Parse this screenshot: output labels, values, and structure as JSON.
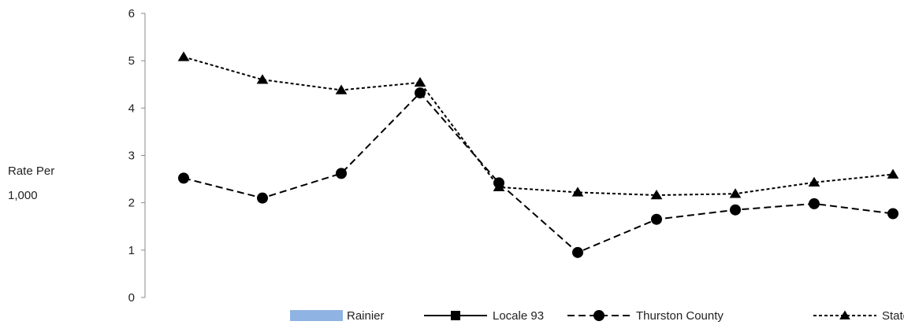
{
  "chart_data": {
    "type": "line",
    "title": "",
    "ylabel": [
      "Rate Per",
      "1,000"
    ],
    "xlabel": "",
    "ylim": [
      0,
      6
    ],
    "yticks": [
      "0",
      "1",
      "2",
      "3",
      "4",
      "5",
      "6"
    ],
    "legend_position": "bottom",
    "series": [
      {
        "name": "Rainier",
        "style": "bar",
        "color": "#8FB4E3",
        "values": []
      },
      {
        "name": "Locale 93",
        "style": "solid-square",
        "color": "#000000",
        "values": []
      },
      {
        "name": "Thurston County",
        "style": "dashed-circle",
        "color": "#000000",
        "values": [
          2.52,
          2.1,
          2.62,
          4.32,
          2.42,
          0.95,
          1.65,
          1.85,
          1.98,
          1.77
        ]
      },
      {
        "name": "State",
        "style": "dotted-triangle",
        "color": "#000000",
        "values": [
          5.08,
          4.6,
          4.38,
          4.54,
          2.33,
          2.22,
          2.16,
          2.19,
          2.43,
          2.6
        ]
      }
    ]
  }
}
